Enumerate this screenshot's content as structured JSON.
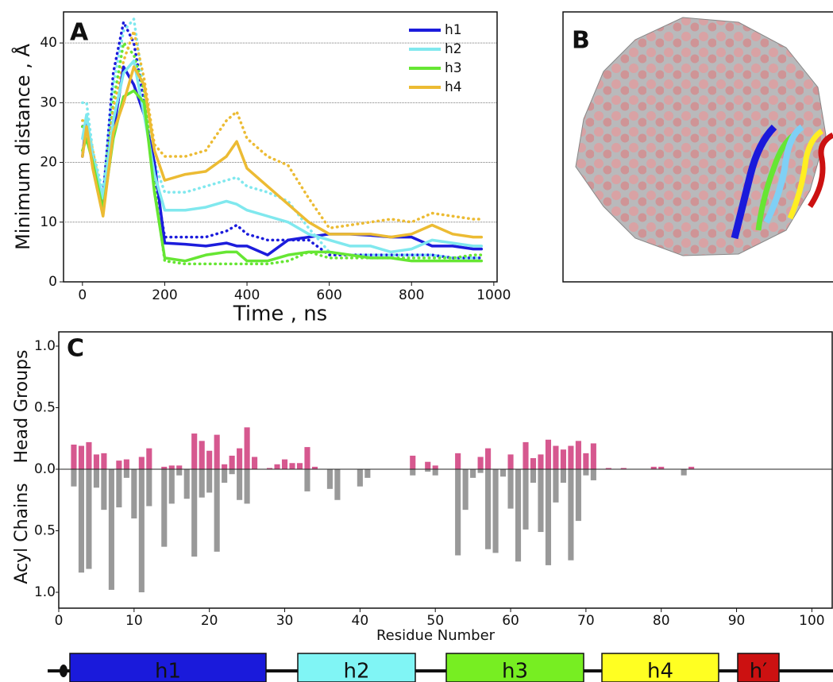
{
  "chart_data": [
    {
      "type": "line",
      "label": "A",
      "xlabel": "Time , ns",
      "ylabel": "Minimum distance , Å",
      "x": [
        0,
        10,
        25,
        50,
        75,
        100,
        125,
        150,
        175,
        200,
        250,
        300,
        350,
        375,
        400,
        450,
        500,
        550,
        600,
        650,
        700,
        750,
        800,
        850,
        900,
        950,
        970
      ],
      "xlim": [
        -46,
        1008
      ],
      "xticks": [
        0,
        200,
        400,
        600,
        800,
        1000
      ],
      "ylim": [
        0,
        45.2
      ],
      "yticks": [
        0,
        10,
        20,
        30,
        40
      ],
      "grid": true,
      "legend": "upper right",
      "series": [
        {
          "name": "h1",
          "color": "#1c1cdc",
          "values": [
            21,
            27,
            20,
            12,
            25,
            36,
            33,
            28,
            20,
            6.5,
            6.3,
            6,
            6.5,
            6,
            6,
            4.5,
            7,
            7.5,
            8,
            8,
            7.8,
            7.5,
            7.5,
            6,
            6,
            5.5,
            5.5
          ],
          "dotted_values": [
            26,
            27,
            20,
            14,
            35,
            43.5,
            40,
            30,
            18,
            7.5,
            7.5,
            7.5,
            8.5,
            9.5,
            8,
            7,
            7,
            7,
            4.5,
            4.5,
            4.5,
            4.5,
            4.5,
            4.5,
            4,
            4,
            4
          ]
        },
        {
          "name": "h2",
          "color": "#80e8ee",
          "values": [
            24,
            28,
            21,
            14,
            27,
            35,
            37,
            28,
            18,
            12,
            12,
            12.5,
            13.5,
            13,
            12,
            11,
            10,
            8,
            7,
            6,
            6,
            5,
            5.5,
            7,
            6.5,
            6,
            6
          ],
          "dotted_values": [
            30,
            30,
            22,
            15,
            33,
            42,
            44,
            32,
            20,
            15,
            15,
            16,
            17,
            17.5,
            16,
            15,
            13.5,
            9,
            5,
            4.5,
            4.5,
            4.5,
            4.5,
            4.5,
            4,
            4,
            4
          ]
        },
        {
          "name": "h3",
          "color": "#66e633",
          "values": [
            22,
            24,
            20,
            12,
            24,
            31,
            32,
            30,
            15,
            4,
            3.5,
            4.5,
            5,
            5,
            3.5,
            3.5,
            4.5,
            5,
            5,
            4.5,
            4,
            4,
            3.5,
            3.5,
            3.5,
            3.5,
            3.5
          ],
          "dotted_values": [
            26,
            26,
            21,
            13,
            30,
            40,
            38,
            32,
            16,
            3.5,
            3,
            3,
            3,
            3,
            3,
            3,
            3.5,
            5,
            4,
            4,
            4,
            4,
            4,
            4,
            4,
            4.5,
            4.5
          ]
        },
        {
          "name": "h4",
          "color": "#ecbb33",
          "values": [
            21,
            26,
            19,
            11,
            25,
            30,
            36,
            33,
            22,
            17,
            18,
            18.5,
            21,
            23.5,
            19,
            16,
            13,
            10,
            8,
            8,
            8,
            7.5,
            8,
            9.5,
            8,
            7.5,
            7.5
          ],
          "dotted_values": [
            27,
            27,
            22,
            13,
            29,
            37,
            42,
            34,
            23,
            21,
            21,
            22,
            27,
            28.5,
            24,
            21,
            19.5,
            14,
            9,
            9.5,
            10,
            10.5,
            10,
            11.5,
            11,
            10.5,
            10.5
          ]
        }
      ]
    },
    {
      "type": "mirrored-bar",
      "label": "C",
      "xlabel": "Residue Number",
      "x": [
        2,
        3,
        4,
        5,
        6,
        7,
        8,
        9,
        10,
        11,
        12,
        14,
        15,
        16,
        17,
        18,
        19,
        20,
        21,
        22,
        23,
        24,
        25,
        26,
        28,
        29,
        30,
        31,
        32,
        33,
        34,
        36,
        37,
        40,
        41,
        47,
        49,
        50,
        53,
        54,
        55,
        56,
        57,
        58,
        59,
        60,
        61,
        62,
        63,
        64,
        65,
        66,
        67,
        68,
        69,
        70,
        71,
        73,
        75,
        79,
        80,
        83,
        84
      ],
      "xlim": [
        0,
        102.7
      ],
      "xticks": [
        0,
        10,
        20,
        30,
        40,
        50,
        60,
        70,
        80,
        90,
        100
      ],
      "ylim": [
        0,
        1.116
      ],
      "yticks": [
        {
          "value": 0,
          "label": "0.0"
        },
        0.5,
        {
          "value": 1,
          "label": "1.0"
        }
      ],
      "y2lim": [
        0,
        1.129
      ],
      "y2ticks": [
        0.5,
        {
          "value": 1,
          "label": "1.0"
        }
      ],
      "series": [
        {
          "name": "Head Groups",
          "color": "#d6588f",
          "values": [
            0.2,
            0.19,
            0.22,
            0.12,
            0.13,
            null,
            0.07,
            0.08,
            null,
            0.1,
            0.17,
            0.02,
            0.03,
            0.03,
            null,
            0.29,
            0.23,
            0.15,
            0.28,
            0.04,
            0.11,
            0.17,
            0.34,
            0.1,
            0.01,
            0.04,
            0.08,
            0.05,
            0.05,
            0.18,
            0.02,
            null,
            null,
            null,
            null,
            0.11,
            0.06,
            0.03,
            0.13,
            null,
            null,
            0.1,
            0.17,
            null,
            null,
            0.12,
            null,
            0.22,
            0.09,
            0.12,
            0.24,
            0.19,
            0.16,
            0.19,
            0.23,
            0.13,
            0.21,
            0.01,
            0.01,
            0.02,
            0.02,
            null,
            0.02
          ]
        },
        {
          "name": "Acyl Chains",
          "color": "#999999",
          "axis": "y2",
          "values": [
            0.14,
            0.84,
            0.81,
            0.15,
            0.33,
            0.98,
            0.31,
            0.07,
            0.4,
            1.0,
            0.3,
            0.63,
            0.28,
            0.05,
            0.24,
            0.71,
            0.23,
            0.19,
            0.67,
            0.11,
            0.04,
            0.25,
            0.28,
            null,
            null,
            null,
            null,
            null,
            null,
            0.18,
            null,
            0.16,
            0.25,
            0.14,
            0.07,
            0.05,
            0.02,
            0.05,
            0.7,
            0.33,
            0.07,
            0.03,
            0.65,
            0.68,
            0.06,
            0.32,
            0.75,
            0.49,
            0.11,
            0.51,
            0.78,
            0.27,
            0.11,
            0.74,
            0.42,
            0.05,
            0.09,
            null,
            null,
            null,
            null,
            0.05,
            null
          ]
        }
      ]
    }
  ],
  "panel_b": {
    "label": "B"
  },
  "domains": [
    {
      "label": "h1",
      "color": "#1a1adb"
    },
    {
      "label": "h2",
      "color": "#80f5f5"
    },
    {
      "label": "h3",
      "color": "#77ee22"
    },
    {
      "label": "h4",
      "color": "#ffff22"
    },
    {
      "label": "h′",
      "color": "#cc1111"
    }
  ]
}
